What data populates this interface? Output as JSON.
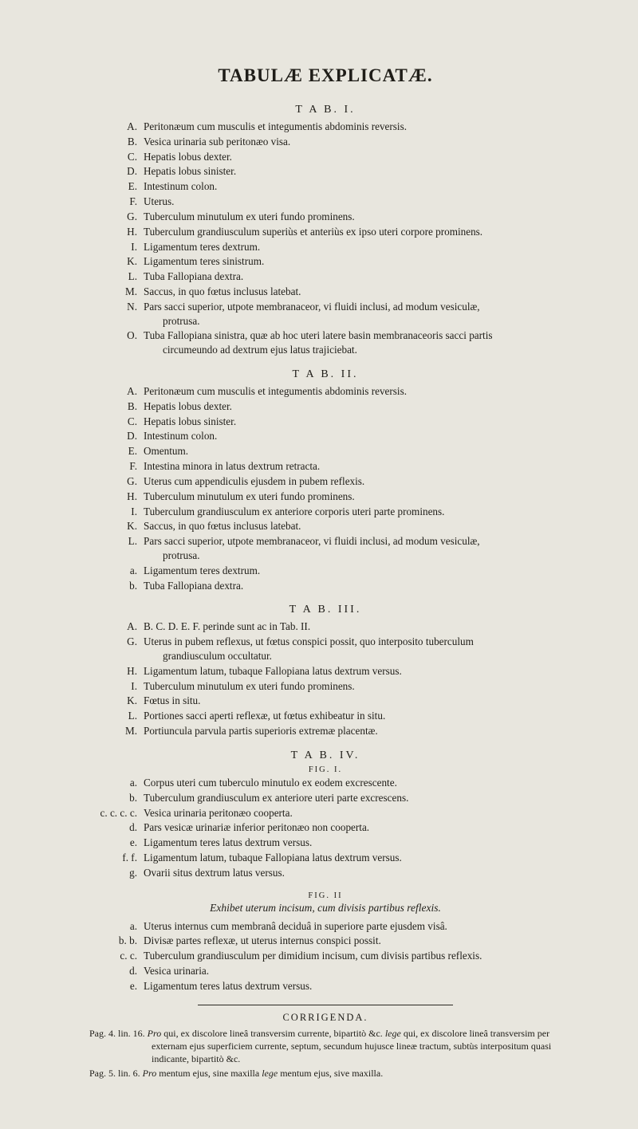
{
  "title": "TABULÆ EXPLICATÆ.",
  "colors": {
    "page_bg": "#e8e6de",
    "text": "#1f1d18",
    "rule": "#2a2823"
  },
  "typography": {
    "body_font": "Times New Roman",
    "title_fontsize": 23,
    "tab_heading_fontsize": 14,
    "entry_fontsize": 13.2,
    "fig_fontsize": 10.5,
    "subtitle_fontsize": 13.5,
    "corr_heading_fontsize": 12.5,
    "corr_entry_fontsize": 12
  },
  "sections": {
    "tab1": {
      "heading": "T A B.  I.",
      "entries": [
        {
          "lbl": "A.",
          "txt": "Peritonæum cum musculis et integumentis abdominis reversis."
        },
        {
          "lbl": "B.",
          "txt": "Vesica urinaria sub peritonæo visa."
        },
        {
          "lbl": "C.",
          "txt": "Hepatis lobus dexter."
        },
        {
          "lbl": "D.",
          "txt": "Hepatis lobus sinister."
        },
        {
          "lbl": "E.",
          "txt": "Intestinum colon."
        },
        {
          "lbl": "F.",
          "txt": "Uterus."
        },
        {
          "lbl": "G.",
          "txt": "Tuberculum minutulum ex uteri fundo prominens."
        },
        {
          "lbl": "H.",
          "txt": "Tuberculum grandiusculum superiùs et anteriùs ex ipso uteri corpore prominens."
        },
        {
          "lbl": "I.",
          "txt": "Ligamentum teres dextrum."
        },
        {
          "lbl": "K.",
          "txt": "Ligamentum teres sinistrum."
        },
        {
          "lbl": "L.",
          "txt": "Tuba Fallopiana dextra."
        },
        {
          "lbl": "M.",
          "txt": "Saccus, in quo fœtus inclusus latebat."
        },
        {
          "lbl": "N.",
          "txt": "Pars sacci superior, utpote membranaceor, vi fluidi inclusi, ad modum vesiculæ,",
          "cont": "protrusa."
        },
        {
          "lbl": "O.",
          "txt": "Tuba Fallopiana sinistra, quæ ab hoc uteri latere basin membranaceoris sacci partis",
          "cont": "circumeundo ad dextrum ejus latus trajiciebat."
        }
      ]
    },
    "tab2": {
      "heading": "T A B.  II.",
      "entries": [
        {
          "lbl": "A.",
          "txt": "Peritonæum cum musculis et integumentis abdominis reversis."
        },
        {
          "lbl": "B.",
          "txt": "Hepatis lobus dexter."
        },
        {
          "lbl": "C.",
          "txt": "Hepatis lobus sinister."
        },
        {
          "lbl": "D.",
          "txt": "Intestinum colon."
        },
        {
          "lbl": "E.",
          "txt": "Omentum."
        },
        {
          "lbl": "F.",
          "txt": "Intestina minora in latus dextrum retracta."
        },
        {
          "lbl": "G.",
          "txt": "Uterus cum appendiculis ejusdem in pubem reflexis."
        },
        {
          "lbl": "H.",
          "txt": "Tuberculum minutulum ex uteri fundo prominens."
        },
        {
          "lbl": "I.",
          "txt": "Tuberculum grandiusculum ex anteriore corporis uteri parte prominens."
        },
        {
          "lbl": "K.",
          "txt": "Saccus, in quo fœtus inclusus latebat."
        },
        {
          "lbl": "L.",
          "txt": "Pars sacci superior, utpote membranaceor, vi fluidi inclusi, ad modum vesiculæ,",
          "cont": "protrusa."
        },
        {
          "lbl": "a.",
          "txt": "Ligamentum teres dextrum."
        },
        {
          "lbl": "b.",
          "txt": "Tuba Fallopiana dextra."
        }
      ]
    },
    "tab3": {
      "heading": "T A B.  III.",
      "entries": [
        {
          "lbl": "A.",
          "txt": "B. C. D. E. F. perinde sunt ac in Tab. II."
        },
        {
          "lbl": "G.",
          "txt": "Uterus in pubem reflexus, ut fœtus conspici possit, quo interposito tuberculum",
          "cont": "grandiusculum occultatur."
        },
        {
          "lbl": "H.",
          "txt": "Ligamentum latum, tubaque Fallopiana latus dextrum versus."
        },
        {
          "lbl": "I.",
          "txt": "Tuberculum minutulum ex uteri fundo prominens."
        },
        {
          "lbl": "K.",
          "txt": "Fœtus in situ."
        },
        {
          "lbl": "L.",
          "txt": "Portiones sacci aperti reflexæ, ut fœtus exhibeatur in situ."
        },
        {
          "lbl": "M.",
          "txt": "Portiuncula parvula partis superioris extremæ placentæ."
        }
      ]
    },
    "tab4": {
      "heading": "T A B.  IV.",
      "fig1": {
        "heading": "FIG. I.",
        "entries": [
          {
            "lbl": "a.",
            "txt": "Corpus uteri cum tuberculo minutulo ex eodem excrescente."
          },
          {
            "lbl": "b.",
            "txt": "Tuberculum grandiusculum ex anteriore uteri parte excrescens."
          },
          {
            "lbl": "c. c. c. c.",
            "txt": "Vesica urinaria peritonæo cooperta."
          },
          {
            "lbl": "d.",
            "txt": "Pars vesicæ urinariæ inferior peritonæo non cooperta."
          },
          {
            "lbl": "e.",
            "txt": "Ligamentum teres latus dextrum versus."
          },
          {
            "lbl": "f. f.",
            "txt": "Ligamentum latum, tubaque Fallopiana latus dextrum versus."
          },
          {
            "lbl": "g.",
            "txt": "Ovarii situs dextrum latus versus."
          }
        ]
      },
      "fig2": {
        "heading": "FIG. II",
        "subtitle": "Exhibet uterum incisum, cum divisis partibus reflexis.",
        "entries": [
          {
            "lbl": "a.",
            "txt": "Uterus internus cum membranâ deciduâ in superiore parte ejusdem visâ."
          },
          {
            "lbl": "b. b.",
            "txt": "Divisæ partes reflexæ, ut uterus internus conspici possit."
          },
          {
            "lbl": "c. c.",
            "txt": "Tuberculum grandiusculum per dimidium incisum, cum divisis partibus reflexis."
          },
          {
            "lbl": "d.",
            "txt": "Vesica urinaria."
          },
          {
            "lbl": "e.",
            "txt": "Ligamentum teres latus dextrum versus."
          }
        ]
      }
    }
  },
  "corrigenda": {
    "heading": "CORRIGENDA.",
    "entries": [
      "Pag. 4. lin. 16. <i>Pro</i> qui, ex discolore lineâ transversim currente, bipartitò &c. <i>lege</i> qui, ex discolore lineâ transversim per externam ejus superficiem currente, septum, secundum hujusce lineæ tractum, subtùs interpositum quasi indicante, bipartitò &c.",
      "Pag. 5. lin. 6. <i>Pro</i> mentum ejus, sine maxilla <i>lege</i> mentum ejus, sive maxilla."
    ]
  }
}
